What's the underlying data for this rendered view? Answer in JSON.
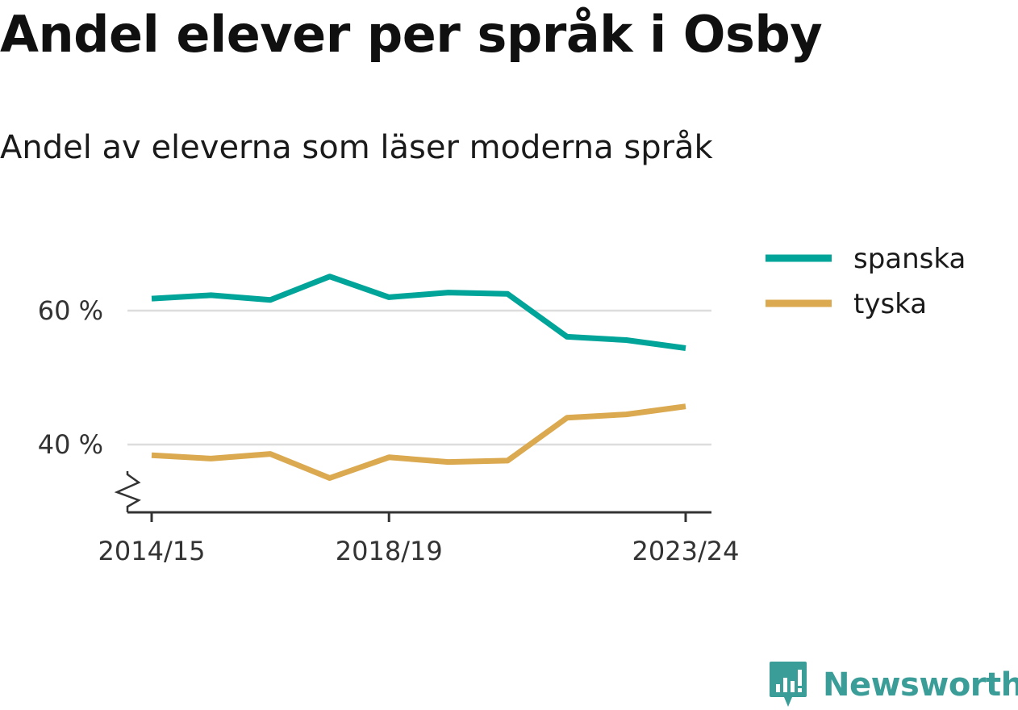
{
  "title": "Andel elever per språk i Osby",
  "subtitle": "Andel av eleverna som läser moderna språk",
  "brand": {
    "name": "Newsworthy",
    "icon": "newsworthy-logo-icon",
    "color": "#3a9d98"
  },
  "chart_data": {
    "type": "line",
    "x": [
      "2014/15",
      "2015/16",
      "2016/17",
      "2017/18",
      "2018/19",
      "2019/20",
      "2020/21",
      "2021/22",
      "2022/23",
      "2023/24"
    ],
    "x_tick_labels": [
      "2014/15",
      "2018/19",
      "2023/24"
    ],
    "y_tick_labels": [
      "40 %",
      "60 %"
    ],
    "y_ticks": [
      40,
      60
    ],
    "ylim": [
      30,
      70
    ],
    "axis_break": true,
    "grid": true,
    "legend_position": "top-right",
    "series": [
      {
        "name": "spanska",
        "color": "#00a499",
        "values": [
          61.8,
          62.3,
          61.6,
          65.1,
          62.0,
          62.7,
          62.5,
          56.1,
          55.6,
          54.4
        ]
      },
      {
        "name": "tyska",
        "color": "#dba94f",
        "values": [
          38.4,
          37.9,
          38.6,
          35.0,
          38.1,
          37.4,
          37.6,
          44.0,
          44.5,
          45.7
        ]
      }
    ]
  }
}
